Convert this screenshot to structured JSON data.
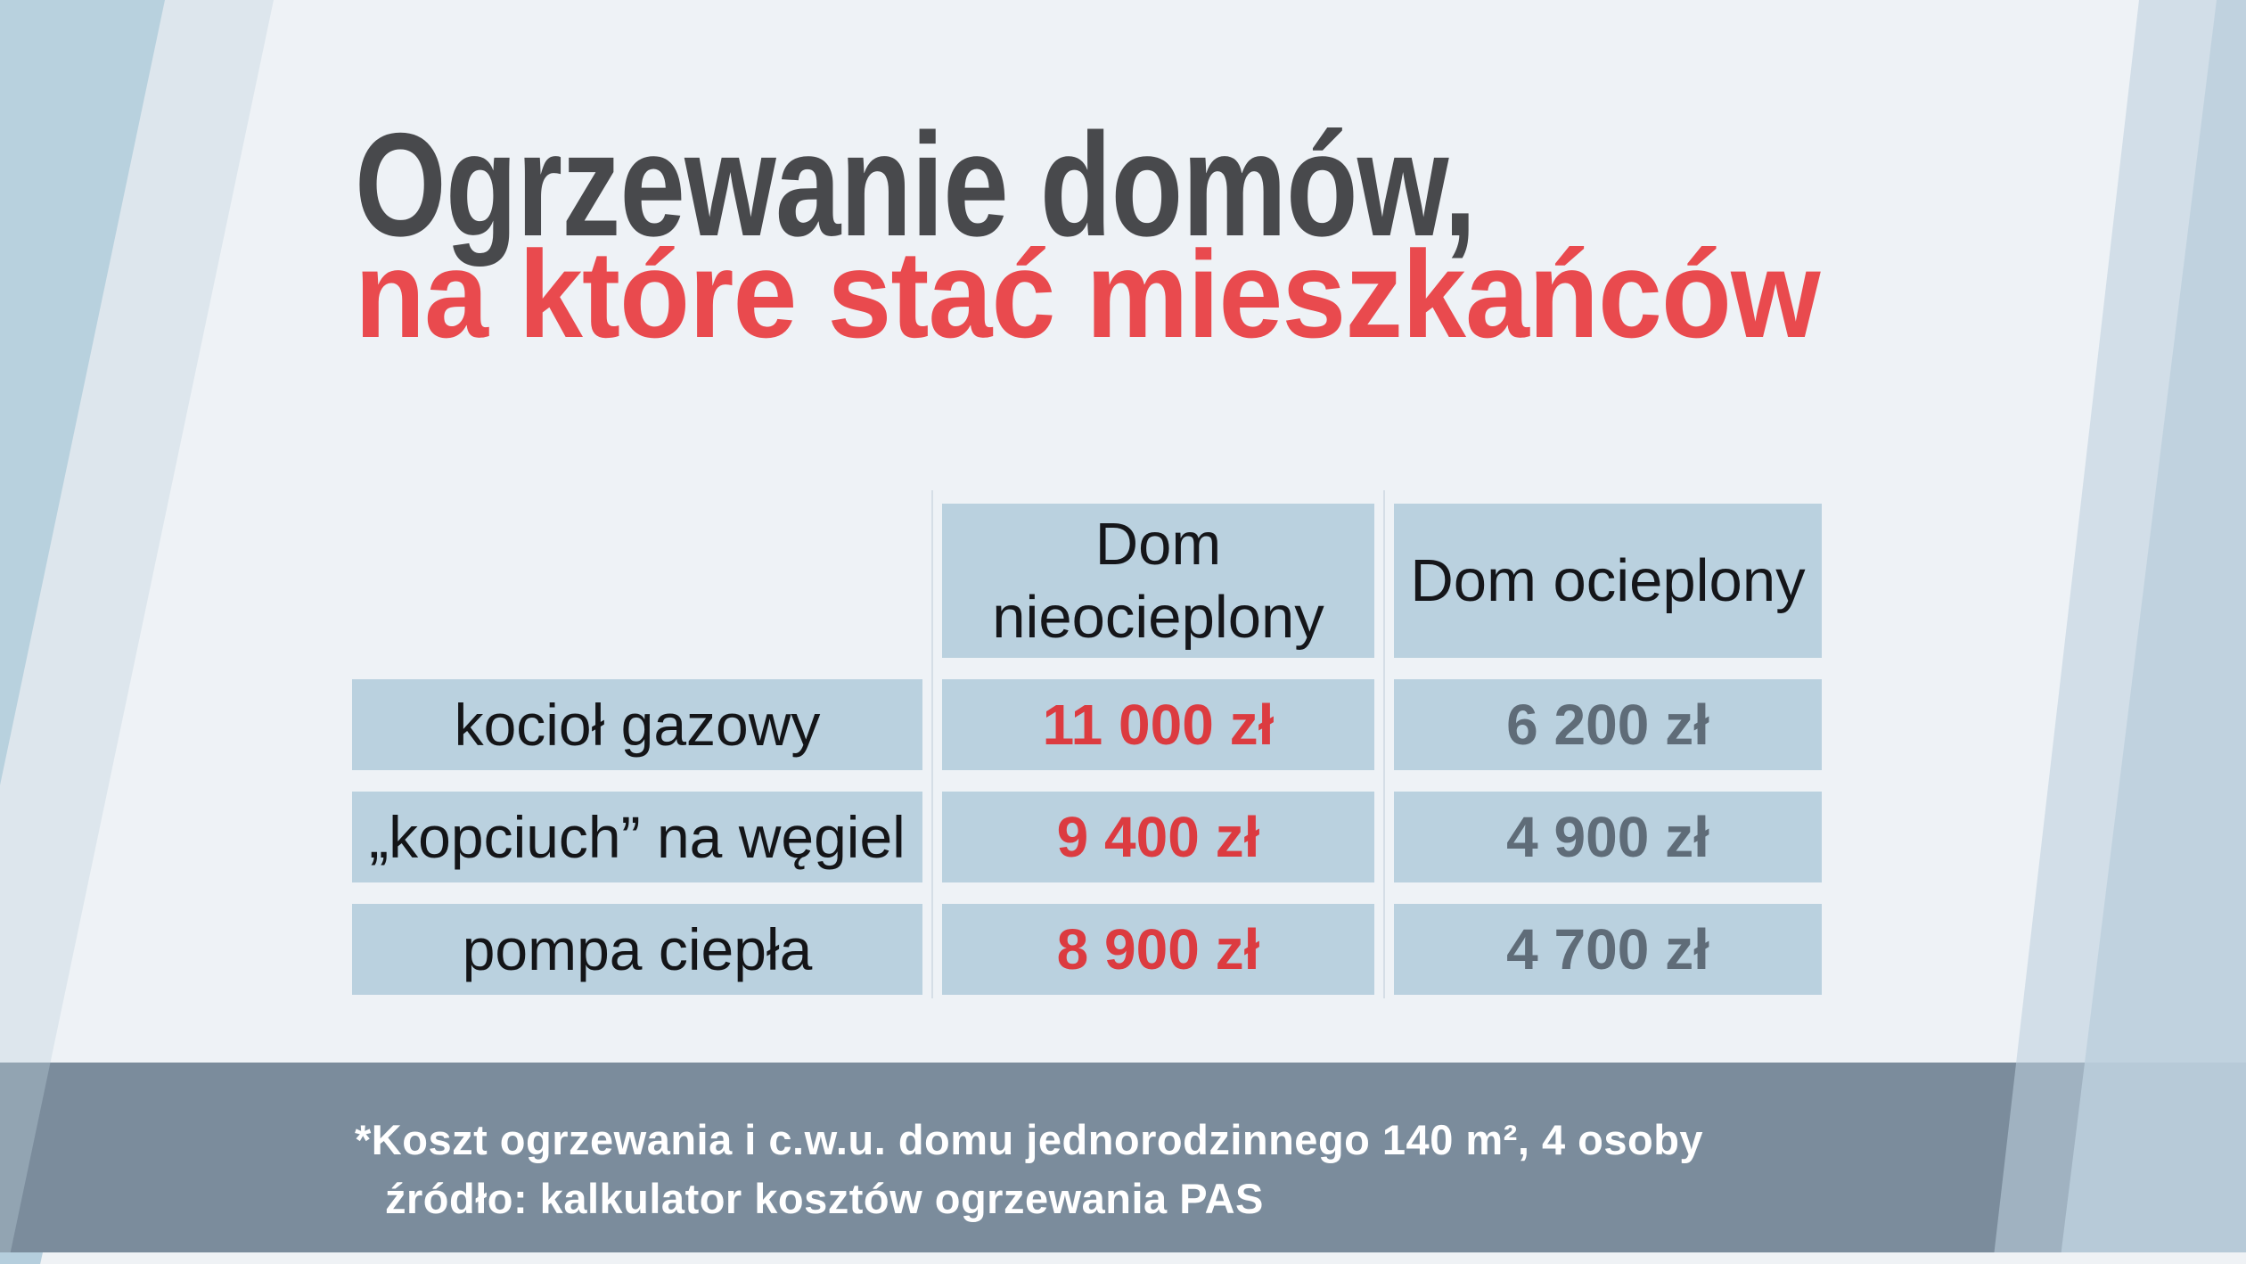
{
  "chart_data": {
    "type": "table",
    "title": "Ogrzewanie domów, na które stać mieszkańców",
    "title_line1": "Ogrzewanie domów,",
    "title_line2": "na które stać mieszkańców",
    "columns": [
      "",
      "Dom nieocieplony",
      "Dom ocieplony"
    ],
    "rows": [
      {
        "label": "kocioł gazowy",
        "values": [
          "11 000 zł",
          "6 200 zł"
        ],
        "numeric": [
          11000,
          6200
        ]
      },
      {
        "label": "„kopciuch” na węgiel",
        "values": [
          "9 400 zł",
          "4 900 zł"
        ],
        "numeric": [
          9400,
          4900
        ]
      },
      {
        "label": "pompa ciepła",
        "values": [
          "8 900 zł",
          "4 700 zł"
        ],
        "numeric": [
          8900,
          4700
        ]
      }
    ],
    "unit": "zł",
    "footnote_line1": "*Koszt ogrzewania i c.w.u. domu jednorodzinnego 140 m², 4 osoby",
    "footnote_line2": "źródło: kalkulator kosztów ogrzewania PAS"
  },
  "colors": {
    "page_background": "#eef2f6",
    "stripe_blue": "#bcd0dd",
    "cell_background": "#bad1df",
    "title_dark": "#48494c",
    "title_red": "#e94a4e",
    "value_red": "#dc3b40",
    "value_gray": "#5f6c78",
    "label_black": "#141518",
    "footer_band": "#7b8c9c",
    "footer_text": "#ffffff"
  }
}
